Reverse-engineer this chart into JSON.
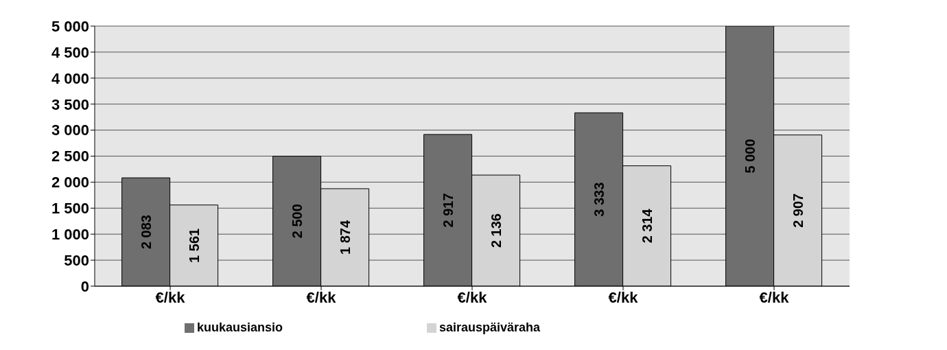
{
  "chart_data": {
    "type": "bar",
    "categories": [
      "€/kk",
      "€/kk",
      "€/kk",
      "€/kk",
      "€/kk"
    ],
    "series": [
      {
        "name": "kuukausiansio",
        "color": "#6f6f6f",
        "values": [
          2083,
          2500,
          2917,
          3333,
          5000
        ],
        "value_labels": [
          "2 083",
          "2 500",
          "2 917",
          "3 333",
          "5 000"
        ]
      },
      {
        "name": "sairauspäiväraha",
        "color": "#d4d4d4",
        "values": [
          1561,
          1874,
          2136,
          2314,
          2907
        ],
        "value_labels": [
          "1 561",
          "1 874",
          "2 136",
          "2 314",
          "2 907"
        ]
      }
    ],
    "ylim": [
      0,
      5000
    ],
    "yticks": [
      0,
      500,
      {
        "value": 1000,
        "label": "1 000"
      },
      {
        "value": 1500,
        "label": "1 500"
      },
      {
        "value": 2000,
        "label": "2 000"
      },
      {
        "value": 2500,
        "label": "2 500"
      },
      {
        "value": 3000,
        "label": "3 000"
      },
      {
        "value": 3500,
        "label": "3 500"
      },
      {
        "value": 4000,
        "label": "4 000"
      },
      {
        "value": 4500,
        "label": "4 500"
      },
      {
        "value": 5000,
        "label": "5 000"
      }
    ],
    "grid": "y",
    "legend": "bottom"
  }
}
